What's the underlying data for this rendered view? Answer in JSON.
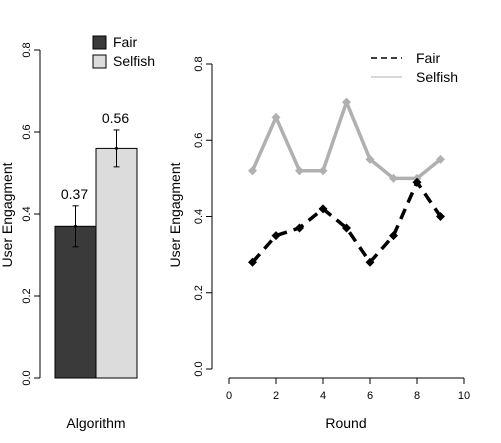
{
  "chart_data": [
    {
      "type": "bar",
      "title": "",
      "xlabel": "Algorithm",
      "ylabel": "User Engagment",
      "ylim": [
        0,
        0.8
      ],
      "yticks": [
        "0.0",
        "0.2",
        "0.4",
        "0.6",
        "0.8"
      ],
      "categories": [
        "Fair",
        "Selfish"
      ],
      "values": [
        0.37,
        0.56
      ],
      "errors": [
        0.05,
        0.045
      ],
      "value_labels": [
        "0.37",
        "0.56"
      ],
      "colors": [
        "#3a3a3a",
        "#dcdcdc"
      ],
      "legend": {
        "position": "top",
        "entries": [
          {
            "label": "Fair",
            "color": "#3a3a3a"
          },
          {
            "label": "Selfish",
            "color": "#dcdcdc"
          }
        ]
      }
    },
    {
      "type": "line",
      "title": "",
      "xlabel": "Round",
      "ylabel": "User Engagment",
      "xlim": [
        0,
        10
      ],
      "ylim": [
        0,
        0.8
      ],
      "xticks": [
        "0",
        "2",
        "4",
        "6",
        "8",
        "10"
      ],
      "yticks": [
        "0.0",
        "0.2",
        "0.4",
        "0.6",
        "0.8"
      ],
      "x": [
        1,
        2,
        3,
        4,
        5,
        6,
        7,
        8,
        9
      ],
      "series": [
        {
          "name": "Fair",
          "color": "#000000",
          "style": "dashed",
          "values": [
            0.28,
            0.35,
            0.37,
            0.42,
            0.37,
            0.28,
            0.35,
            0.49,
            0.4
          ]
        },
        {
          "name": "Selfish",
          "color": "#b0b0b0",
          "style": "solid",
          "values": [
            0.52,
            0.66,
            0.52,
            0.52,
            0.7,
            0.55,
            0.5,
            0.5,
            0.55
          ]
        }
      ],
      "legend": {
        "position": "top-right"
      }
    }
  ]
}
